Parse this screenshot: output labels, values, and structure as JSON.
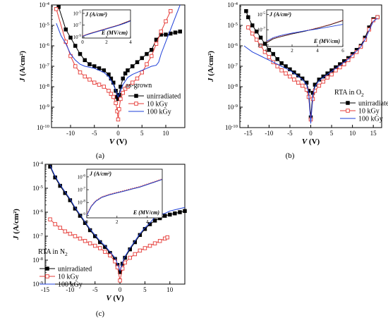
{
  "chart_data": [
    {
      "type": "line",
      "panel_label": "(a)",
      "xlabel": "V (V)",
      "ylabel": "J (A/cm²)",
      "xlim": [
        -14,
        14
      ],
      "ylim_log10": [
        -10,
        -4
      ],
      "yscale": "log",
      "x_ticks": [
        "-10",
        "-5",
        "0",
        "5",
        "10"
      ],
      "y_ticks": [
        "10-10",
        "10-9",
        "10-8",
        "10-7",
        "10-6",
        "10-5",
        "10-4"
      ],
      "legend_title": "as-grown",
      "legend_position": "bottom-right",
      "series": [
        {
          "name": "unirradiated",
          "marker": "filled-square",
          "color": "#000000",
          "x": [
            -12.5,
            -11,
            -10,
            -9,
            -8,
            -7,
            -6,
            -5,
            -4,
            -3,
            -2,
            -1.5,
            -1,
            -0.5,
            -0.2,
            0,
            0.2,
            0.5,
            1,
            1.5,
            2,
            3,
            4,
            5,
            6,
            7,
            8,
            9,
            10,
            11,
            12,
            13
          ],
          "y": [
            -4.1,
            -5.2,
            -5.6,
            -6.0,
            -6.4,
            -6.7,
            -6.9,
            -7.0,
            -7.1,
            -7.2,
            -7.4,
            -7.6,
            -7.8,
            -8.2,
            -8.5,
            -8.6,
            -8.4,
            -8.0,
            -7.6,
            -7.35,
            -7.2,
            -7.0,
            -6.8,
            -6.6,
            -6.4,
            -6.2,
            -5.7,
            -5.45,
            -5.45,
            -5.4,
            -5.35,
            -5.3
          ]
        },
        {
          "name": "10 kGy",
          "marker": "open-square",
          "color": "#e53935",
          "x": [
            -13,
            -11,
            -10,
            -9,
            -8,
            -7,
            -6,
            -5,
            -4,
            -3,
            -2,
            -1.5,
            -1,
            -0.5,
            -0.2,
            0,
            0.2,
            0.5,
            1,
            1.5,
            2,
            3,
            4,
            5,
            6,
            7,
            8,
            9,
            10,
            11
          ],
          "y": [
            -4.2,
            -5.8,
            -6.5,
            -7.0,
            -7.3,
            -7.5,
            -7.65,
            -7.8,
            -7.9,
            -8.0,
            -8.2,
            -8.35,
            -8.5,
            -8.8,
            -9.2,
            -9.6,
            -9.1,
            -8.6,
            -8.3,
            -8.1,
            -8.0,
            -7.8,
            -7.6,
            -7.3,
            -6.9,
            -6.5,
            -5.9,
            -5.3,
            -4.8,
            -4.3
          ]
        },
        {
          "name": "100 kGy",
          "marker": "none",
          "color": "#1e3fd8",
          "x": [
            -13,
            -12,
            -11,
            -10,
            -9,
            -8,
            -7,
            -6,
            -5,
            -4,
            -3,
            -2,
            -1,
            -0.5,
            0,
            0.5,
            1,
            2,
            3,
            4,
            5,
            6,
            7,
            8,
            8.5,
            9,
            10,
            11,
            12,
            13
          ],
          "y": [
            -4.9,
            -5.5,
            -5.9,
            -6.4,
            -6.7,
            -6.9,
            -7.0,
            -7.05,
            -7.1,
            -7.2,
            -7.3,
            -7.5,
            -7.9,
            -8.2,
            -8.5,
            -8.2,
            -7.9,
            -7.55,
            -7.4,
            -7.3,
            -7.2,
            -7.1,
            -7.0,
            -6.95,
            -6.8,
            -6.4,
            -5.8,
            -5.2,
            -4.6,
            -4.0
          ]
        }
      ],
      "inset": {
        "xlabel": "E (MV/cm)",
        "ylabel": "J (A/cm²)",
        "xlim": [
          0,
          4
        ],
        "x_ticks": [
          "0",
          "2",
          "4"
        ],
        "y_ticks_log10": [
          -9,
          -7,
          -5
        ],
        "y_ticks": [
          "10-9",
          "10-7",
          "10-5"
        ],
        "series": [
          {
            "name": "unirradiated",
            "color": "#000000",
            "x": [
              0,
              0.5,
              1,
              1.5,
              2,
              2.5,
              3,
              3.5,
              4
            ],
            "y": [
              -8.9,
              -8.5,
              -8.2,
              -7.9,
              -7.6,
              -7.3,
              -7.0,
              -6.6,
              -6.2
            ]
          },
          {
            "name": "10 kGy",
            "color": "#e53935",
            "x": [
              0,
              0.5,
              1,
              1.5,
              2,
              2.5,
              3,
              3.5,
              4
            ],
            "y": [
              -8.8,
              -8.45,
              -8.15,
              -7.85,
              -7.55,
              -7.25,
              -6.95,
              -6.6,
              -6.2
            ]
          },
          {
            "name": "100 kGy",
            "color": "#1e3fd8",
            "x": [
              0,
              0.5,
              1,
              1.5,
              2,
              2.5,
              3,
              3.5,
              4
            ],
            "y": [
              -8.9,
              -8.55,
              -8.25,
              -7.95,
              -7.65,
              -7.35,
              -7.05,
              -6.7,
              -6.3
            ]
          }
        ]
      }
    },
    {
      "type": "line",
      "panel_label": "(b)",
      "xlabel": "V (V)",
      "ylabel": "J (A/cm²)",
      "xlim": [
        -17,
        17
      ],
      "ylim_log10": [
        -10,
        -4
      ],
      "yscale": "log",
      "x_ticks": [
        "-15",
        "-10",
        "-5",
        "0",
        "5",
        "10",
        "15"
      ],
      "y_ticks": [
        "10-10",
        "10-9",
        "10-8",
        "10-7",
        "10-6",
        "10-5",
        "10-4"
      ],
      "legend_title": "RTA in O2",
      "legend_position": "bottom-right",
      "series": [
        {
          "name": "unirradiated",
          "marker": "filled-square",
          "color": "#000000",
          "x": [
            -15.5,
            -15,
            -14,
            -13,
            -12,
            -11,
            -10,
            -9,
            -8,
            -7,
            -6,
            -5,
            -4,
            -3,
            -2,
            -1,
            -0.5,
            0,
            0.5,
            1,
            2,
            3,
            4,
            5,
            6,
            7,
            8,
            9,
            10,
            11,
            12,
            13,
            14,
            15,
            16
          ],
          "y": [
            -4.3,
            -4.6,
            -5.0,
            -5.3,
            -5.6,
            -5.9,
            -6.2,
            -6.4,
            -6.65,
            -6.85,
            -7.0,
            -7.15,
            -7.3,
            -7.45,
            -7.6,
            -7.8,
            -8.2,
            -9.5,
            -8.3,
            -7.9,
            -7.65,
            -7.5,
            -7.35,
            -7.2,
            -7.05,
            -6.9,
            -6.75,
            -6.6,
            -6.4,
            -6.2,
            -6.0,
            -5.6,
            -5.1,
            -4.7,
            -4.6
          ]
        },
        {
          "name": "10 kGy",
          "marker": "open-square",
          "color": "#e53935",
          "x": [
            -15,
            -14,
            -13,
            -12,
            -11,
            -10,
            -9,
            -8,
            -7,
            -6,
            -5,
            -4,
            -3,
            -2,
            -1,
            -0.5,
            0,
            0.5,
            1,
            2,
            3,
            4,
            5,
            6,
            7,
            8,
            9,
            10,
            11,
            12,
            13,
            14,
            15,
            16
          ],
          "y": [
            -5.1,
            -5.4,
            -5.7,
            -6.0,
            -6.3,
            -6.55,
            -6.8,
            -7.0,
            -7.2,
            -7.35,
            -7.5,
            -7.65,
            -7.8,
            -7.95,
            -8.15,
            -8.5,
            -9.6,
            -8.6,
            -8.2,
            -7.95,
            -7.75,
            -7.55,
            -7.4,
            -7.2,
            -7.05,
            -6.9,
            -6.7,
            -6.5,
            -6.3,
            -6.05,
            -5.7,
            -5.2,
            -4.75,
            -4.6
          ]
        },
        {
          "name": "100 kGy",
          "marker": "none",
          "color": "#1e3fd8",
          "x": [
            -16,
            -15,
            -14,
            -13,
            -12,
            -11,
            -10,
            -9,
            -8,
            -7,
            -6,
            -5,
            -4,
            -3,
            -2,
            -1,
            -0.5,
            0,
            0.5,
            1,
            2,
            3,
            4,
            5,
            6,
            7,
            8,
            9,
            10,
            11,
            12,
            13,
            14,
            15,
            16
          ],
          "y": [
            -6.0,
            -6.15,
            -6.3,
            -6.4,
            -6.5,
            -6.6,
            -6.7,
            -6.8,
            -6.9,
            -7.0,
            -7.1,
            -7.2,
            -7.35,
            -7.5,
            -7.65,
            -7.9,
            -8.3,
            -9.8,
            -8.4,
            -8.0,
            -7.7,
            -7.55,
            -7.4,
            -7.25,
            -7.1,
            -6.95,
            -6.8,
            -6.65,
            -6.45,
            -6.25,
            -6.05,
            -5.7,
            -5.25,
            -4.8,
            -4.65
          ]
        }
      ],
      "inset": {
        "xlabel": "E (MV/cm)",
        "ylabel": "J (A/cm²)",
        "xlim": [
          0,
          6
        ],
        "x_ticks": [
          "0",
          "2",
          "4",
          "6"
        ],
        "y_ticks_log10": [
          -9,
          -7,
          -5
        ],
        "y_ticks": [
          "10-9",
          "10-7",
          "10-5"
        ],
        "series": [
          {
            "name": "unirradiated",
            "color": "#000000",
            "x": [
              0,
              0.5,
              1,
              1.5,
              2,
              3,
              4,
              5,
              6
            ],
            "y": [
              -8.7,
              -8.2,
              -7.95,
              -7.75,
              -7.55,
              -7.2,
              -6.8,
              -6.35,
              -5.8
            ]
          },
          {
            "name": "10 kGy",
            "color": "#e53935",
            "x": [
              0,
              0.5,
              1,
              1.5,
              2,
              3,
              4,
              5,
              6
            ],
            "y": [
              -8.6,
              -8.15,
              -7.9,
              -7.7,
              -7.5,
              -7.15,
              -6.75,
              -6.3,
              -5.75
            ]
          },
          {
            "name": "100 kGy",
            "color": "#1e3fd8",
            "x": [
              0,
              0.5,
              1,
              1.5,
              2,
              3,
              4,
              5,
              6
            ],
            "y": [
              -8.5,
              -8.05,
              -7.8,
              -7.6,
              -7.45,
              -7.15,
              -6.9,
              -6.6,
              -6.3
            ]
          }
        ]
      }
    },
    {
      "type": "line",
      "panel_label": "(c)",
      "xlabel": "V (V)",
      "ylabel": "J (A/cm²)",
      "xlim": [
        -15,
        13
      ],
      "ylim_log10": [
        -9,
        -4
      ],
      "yscale": "log",
      "x_ticks": [
        "-15",
        "-10",
        "-5",
        "0",
        "5",
        "10"
      ],
      "y_ticks": [
        "10-9",
        "10-8",
        "10-7",
        "10-6",
        "10-5",
        "10-4"
      ],
      "legend_title": "RTA in N2",
      "legend_position": "bottom-left",
      "series": [
        {
          "name": "unirradiated",
          "marker": "filled-square",
          "color": "#000000",
          "x": [
            -14,
            -13,
            -12,
            -11,
            -10,
            -9,
            -8,
            -7,
            -6,
            -5,
            -4,
            -3,
            -2,
            -1,
            -0.5,
            0,
            0.5,
            1,
            2,
            3,
            4,
            5,
            6,
            7,
            8,
            9,
            10,
            11,
            12,
            13
          ],
          "y": [
            -4.1,
            -4.55,
            -4.9,
            -5.2,
            -5.5,
            -5.85,
            -6.15,
            -6.45,
            -6.75,
            -7.0,
            -7.25,
            -7.45,
            -7.7,
            -7.95,
            -8.2,
            -8.5,
            -8.15,
            -7.9,
            -7.55,
            -7.25,
            -6.95,
            -6.7,
            -6.5,
            -6.35,
            -6.25,
            -6.15,
            -6.1,
            -6.05,
            -6.0,
            -5.95
          ]
        },
        {
          "name": "10 kGy",
          "marker": "open-square",
          "color": "#e53935",
          "x": [
            -14,
            -13,
            -12,
            -11,
            -10,
            -9,
            -8,
            -7,
            -6,
            -5,
            -4,
            -3,
            -2,
            -1,
            -0.5,
            0,
            0.5,
            1,
            2,
            3,
            4,
            5,
            6,
            7,
            8,
            9,
            9.5
          ],
          "y": [
            -6.3,
            -6.5,
            -6.65,
            -6.8,
            -6.9,
            -7.0,
            -7.1,
            -7.2,
            -7.3,
            -7.4,
            -7.5,
            -7.65,
            -7.8,
            -8.05,
            -8.3,
            -8.85,
            -8.35,
            -8.1,
            -7.9,
            -7.75,
            -7.6,
            -7.5,
            -7.4,
            -7.3,
            -7.2,
            -7.1,
            -7.05
          ]
        },
        {
          "name": "100 kGy",
          "marker": "none",
          "color": "#1e3fd8",
          "x": [
            -14,
            -13,
            -12,
            -11,
            -10,
            -9,
            -8,
            -7,
            -6,
            -5,
            -4,
            -3,
            -2,
            -1,
            -0.5,
            0,
            0.5,
            1,
            2,
            3,
            4,
            5,
            6,
            7,
            8,
            9,
            10,
            11,
            12,
            13
          ],
          "y": [
            -4.05,
            -4.5,
            -4.85,
            -5.15,
            -5.45,
            -5.8,
            -6.1,
            -6.4,
            -6.7,
            -6.95,
            -7.2,
            -7.4,
            -7.65,
            -7.9,
            -8.15,
            -8.45,
            -8.1,
            -7.85,
            -7.5,
            -7.2,
            -6.9,
            -6.65,
            -6.45,
            -6.2,
            -6.1,
            -6.05,
            -5.95,
            -5.9,
            -5.85,
            -5.8
          ]
        }
      ],
      "inset": {
        "xlabel": "E (MV/cm)",
        "ylabel": "J (A/cm²)",
        "xlim": [
          0,
          5
        ],
        "x_ticks": [
          "0",
          "2",
          "4"
        ],
        "y_ticks_log10": [
          -9,
          -8,
          -7,
          -6
        ],
        "y_ticks": [
          "10-9",
          "10-8",
          "10-7",
          "10-6"
        ],
        "series": [
          {
            "name": "unirradiated",
            "color": "#000000",
            "x": [
              0,
              0.3,
              0.6,
              1,
              1.5,
              2,
              2.5,
              3,
              3.5,
              4,
              4.5,
              5
            ],
            "y": [
              -9.0,
              -8.3,
              -7.9,
              -7.6,
              -7.4,
              -7.25,
              -7.1,
              -6.95,
              -6.8,
              -6.6,
              -6.4,
              -6.2
            ]
          },
          {
            "name": "10 kGy",
            "color": "#e53935",
            "x": [
              0,
              0.3,
              0.6,
              1,
              1.5,
              2,
              2.5,
              3,
              3.5,
              4,
              4.5,
              5
            ],
            "y": [
              -8.9,
              -8.25,
              -7.85,
              -7.55,
              -7.35,
              -7.2,
              -7.05,
              -6.9,
              -6.75,
              -6.55,
              -6.35,
              -6.15
            ]
          },
          {
            "name": "100 kGy",
            "color": "#1e3fd8",
            "x": [
              0,
              0.3,
              0.6,
              1,
              1.5,
              2,
              2.5,
              3,
              3.5,
              4,
              4.5,
              5
            ],
            "y": [
              -9.0,
              -8.3,
              -7.9,
              -7.6,
              -7.4,
              -7.25,
              -7.1,
              -6.95,
              -6.8,
              -6.6,
              -6.4,
              -6.2
            ]
          }
        ]
      }
    }
  ]
}
